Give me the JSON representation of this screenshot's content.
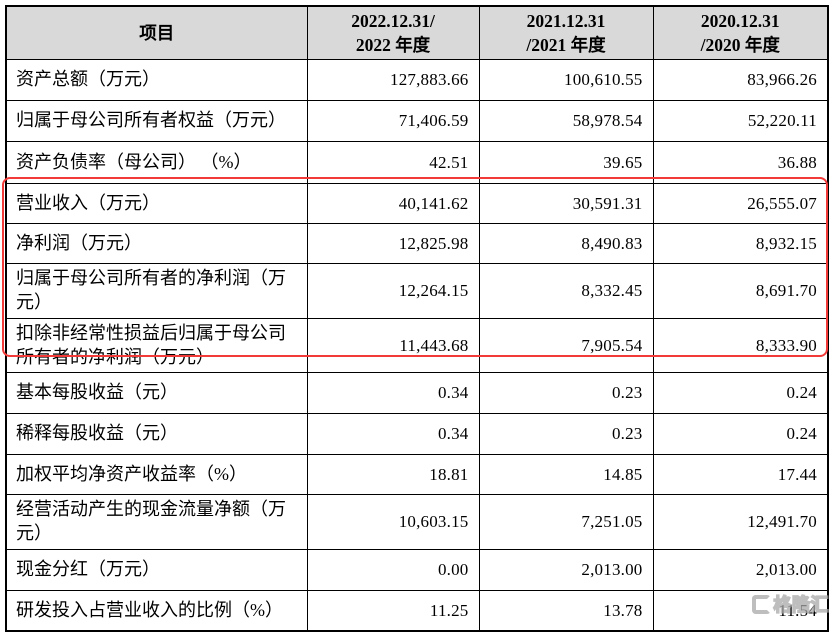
{
  "table": {
    "header": {
      "item": "项目",
      "col2022_line1": "2022.12.31/",
      "col2022_line2": "2022 年度",
      "col2021_line1": "2021.12.31",
      "col2021_line2": "/2021 年度",
      "col2020_line1": "2020.12.31",
      "col2020_line2": "/2020 年度"
    },
    "rows": [
      {
        "label": "资产总额（万元）",
        "v2022": "127,883.66",
        "v2021": "100,610.55",
        "v2020": "83,966.26"
      },
      {
        "label": "归属于母公司所有者权益（万元）",
        "v2022": "71,406.59",
        "v2021": "58,978.54",
        "v2020": "52,220.11"
      },
      {
        "label": "资产负债率（母公司） （%）",
        "v2022": "42.51",
        "v2021": "39.65",
        "v2020": "36.88"
      },
      {
        "label": "营业收入（万元）",
        "v2022": "40,141.62",
        "v2021": "30,591.31",
        "v2020": "26,555.07"
      },
      {
        "label": "净利润（万元）",
        "v2022": "12,825.98",
        "v2021": "8,490.83",
        "v2020": "8,932.15"
      },
      {
        "label": "归属于母公司所有者的净利润（万元）",
        "v2022": "12,264.15",
        "v2021": "8,332.45",
        "v2020": "8,691.70"
      },
      {
        "label": "扣除非经常性损益后归属于母公司所有者的净利润（万元）",
        "v2022": "11,443.68",
        "v2021": "7,905.54",
        "v2020": "8,333.90"
      },
      {
        "label": "基本每股收益（元）",
        "v2022": "0.34",
        "v2021": "0.23",
        "v2020": "0.24"
      },
      {
        "label": "稀释每股收益（元）",
        "v2022": "0.34",
        "v2021": "0.23",
        "v2020": "0.24"
      },
      {
        "label": "加权平均净资产收益率（%）",
        "v2022": "18.81",
        "v2021": "14.85",
        "v2020": "17.44"
      },
      {
        "label": "经营活动产生的现金流量净额（万元）",
        "v2022": "10,603.15",
        "v2021": "7,251.05",
        "v2020": "12,491.70"
      },
      {
        "label": "现金分红（万元）",
        "v2022": "0.00",
        "v2021": "2,013.00",
        "v2020": "2,013.00"
      },
      {
        "label": "研发投入占营业收入的比例（%）",
        "v2022": "11.25",
        "v2021": "13.78",
        "v2020": "11.54"
      }
    ]
  },
  "highlight": {
    "color": "#f23b38",
    "highlighted_rows": [
      "营业收入（万元）",
      "净利润（万元）",
      "归属于母公司所有者的净利润（万元）",
      "扣除非经常性损益后归属于母公司所有者的净利润（万元）"
    ]
  },
  "colors": {
    "header_bg": "#d9d9d9",
    "border": "#000000",
    "watermark_gray": "#a9a9a9"
  },
  "watermark": {
    "text": "格隆汇"
  }
}
